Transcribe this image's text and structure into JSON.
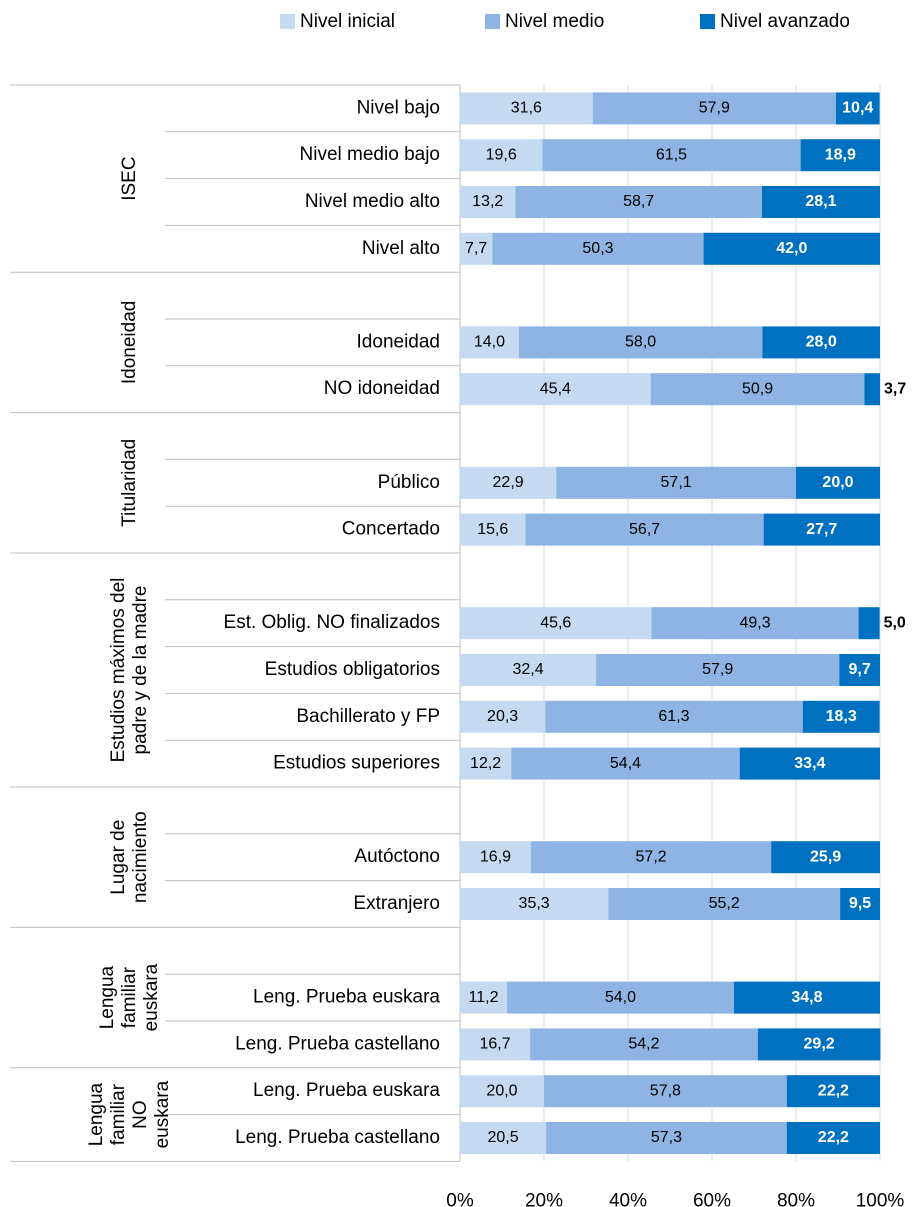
{
  "chart_data": {
    "type": "stacked-bar-horizontal",
    "groups": [
      {
        "label": [
          "ISEC"
        ],
        "categories": [
          "Nivel bajo",
          "Nivel medio bajo",
          "Nivel medio alto",
          "Nivel alto"
        ]
      },
      {
        "label": [
          "Idoneidad"
        ],
        "categories": [
          null,
          "Idoneidad",
          "NO idoneidad"
        ]
      },
      {
        "label": [
          "Titularidad"
        ],
        "categories": [
          null,
          "Público",
          "Concertado"
        ]
      },
      {
        "label": [
          "Estudios máximos del",
          "padre y de la madre"
        ],
        "categories": [
          null,
          "Est. Oblig. NO finalizados",
          "Estudios obligatorios",
          "Bachillerato y FP",
          "Estudios superiores"
        ]
      },
      {
        "label": [
          "Lugar de",
          "nacimiento"
        ],
        "categories": [
          null,
          "Autóctono",
          "Extranjero"
        ]
      },
      {
        "label": [
          "Lengua",
          "familiar",
          "euskara"
        ],
        "categories": [
          null,
          "Leng. Prueba euskara",
          "Leng. Prueba castellano"
        ]
      },
      {
        "label": [
          "Lengua",
          "familiar",
          "NO",
          "euskara"
        ],
        "categories": [
          "Leng. Prueba euskara",
          "Leng. Prueba castellano"
        ]
      }
    ],
    "series": [
      {
        "name": "Nivel inicial",
        "color": "#c5d9f1",
        "values": [
          31.6,
          19.6,
          13.2,
          7.7,
          null,
          14.0,
          45.4,
          null,
          22.9,
          15.6,
          null,
          45.6,
          32.4,
          20.3,
          12.2,
          null,
          16.9,
          35.3,
          null,
          11.2,
          16.7,
          20.0,
          20.5
        ],
        "value_labels": [
          "31,6",
          "19,6",
          "13,2",
          "7,7",
          null,
          "14,0",
          "45,4",
          null,
          "22,9",
          "15,6",
          null,
          "45,6",
          "32,4",
          "20,3",
          "12,2",
          null,
          "16,9",
          "35,3",
          null,
          "11,2",
          "16,7",
          "20,0",
          "20,5"
        ]
      },
      {
        "name": "Nivel medio",
        "color": "#8db4e2",
        "values": [
          57.9,
          61.5,
          58.7,
          50.3,
          null,
          58.0,
          50.9,
          null,
          57.1,
          56.7,
          null,
          49.3,
          57.9,
          61.3,
          54.4,
          null,
          57.2,
          55.2,
          null,
          54.0,
          54.2,
          57.8,
          57.3
        ],
        "value_labels": [
          "57,9",
          "61,5",
          "58,7",
          "50,3",
          null,
          "58,0",
          "50,9",
          null,
          "57,1",
          "56,7",
          null,
          "49,3",
          "57,9",
          "61,3",
          "54,4",
          null,
          "57,2",
          "55,2",
          null,
          "54,0",
          "54,2",
          "57,8",
          "57,3"
        ]
      },
      {
        "name": "Nivel avanzado",
        "color": "#0070c0",
        "values": [
          10.4,
          18.9,
          28.1,
          42.0,
          null,
          28.0,
          3.7,
          null,
          20.0,
          27.7,
          null,
          5.0,
          9.7,
          18.3,
          33.4,
          null,
          25.9,
          9.5,
          null,
          34.8,
          29.2,
          22.2,
          22.2
        ],
        "value_labels": [
          "10,4",
          "18,9",
          "28,1",
          "42,0",
          null,
          "28,0",
          "3,7",
          null,
          "20,0",
          "27,7",
          null,
          "5,0",
          "9,7",
          "18,3",
          "33,4",
          null,
          "25,9",
          "9,5",
          null,
          "34,8",
          "29,2",
          "22,2",
          "22,2"
        ]
      }
    ],
    "xlim": [
      0,
      100
    ],
    "xticks": [
      {
        "value": 0,
        "label": "0%"
      },
      {
        "value": 20,
        "label": "20%"
      },
      {
        "value": 40,
        "label": "40%"
      },
      {
        "value": 60,
        "label": "60%"
      },
      {
        "value": 80,
        "label": "80%"
      },
      {
        "value": 100,
        "label": "100%"
      }
    ],
    "grid": true,
    "legend": "top"
  }
}
